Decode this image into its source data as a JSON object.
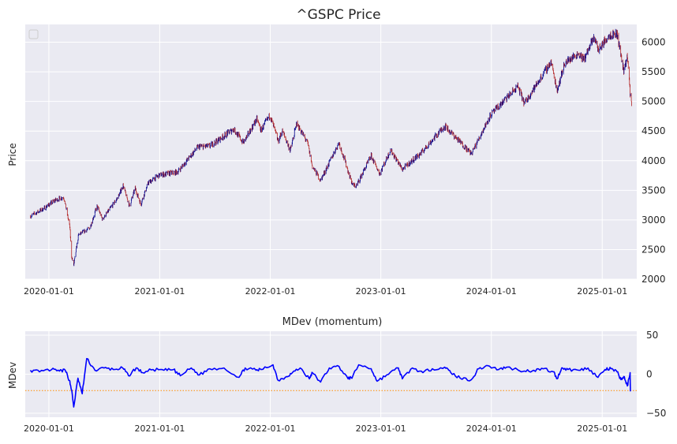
{
  "chart_data": [
    {
      "type": "candlestick",
      "title": "^GSPC Price",
      "ylabel": "Price",
      "xlabel": "",
      "ylim": [
        2000,
        6300
      ],
      "x_range": [
        "2019-10-15",
        "2025-04-25"
      ],
      "y_ticks": [
        2000,
        2500,
        3000,
        3500,
        4000,
        4500,
        5000,
        5500,
        6000
      ],
      "y_tick_labels": [
        "2000",
        "2500",
        "3000",
        "3500",
        "4000",
        "4500",
        "5000",
        "5500",
        "6000"
      ],
      "x_ticks": [
        "2020-01-01",
        "2021-01-01",
        "2022-01-01",
        "2023-01-01",
        "2024-01-01",
        "2025-01-01"
      ],
      "y_axis_side": "right",
      "grid": true,
      "legend": "top-left (empty)",
      "up_color": "#00008B",
      "down_color": "#B22222",
      "series": [
        {
          "x": [
            "2019-11-01",
            "2019-12-15",
            "2020-01-20",
            "2020-02-19",
            "2020-03-02",
            "2020-03-10",
            "2020-03-16",
            "2020-03-23",
            "2020-04-08",
            "2020-05-15",
            "2020-06-08",
            "2020-06-26",
            "2020-08-15",
            "2020-09-02",
            "2020-09-23",
            "2020-10-12",
            "2020-10-30",
            "2020-11-25",
            "2020-12-31",
            "2021-03-01",
            "2021-05-07",
            "2021-06-15",
            "2021-08-15",
            "2021-09-02",
            "2021-10-04",
            "2021-11-18",
            "2021-12-01",
            "2021-12-31",
            "2022-01-27",
            "2022-02-10",
            "2022-03-08",
            "2022-03-29",
            "2022-05-04",
            "2022-05-20",
            "2022-06-16",
            "2022-08-16",
            "2022-09-30",
            "2022-10-12",
            "2022-11-30",
            "2022-12-28",
            "2023-02-02",
            "2023-03-13",
            "2023-05-15",
            "2023-07-31",
            "2023-10-27",
            "2023-12-29",
            "2024-03-28",
            "2024-04-19",
            "2024-07-16",
            "2024-08-05",
            "2024-08-30",
            "2024-10-15",
            "2024-11-01",
            "2024-12-06",
            "2024-12-19",
            "2025-01-23",
            "2025-02-19",
            "2025-03-13",
            "2025-03-25",
            "2025-04-04",
            "2025-04-08"
          ],
          "close": [
            3066,
            3191,
            3329,
            3386,
            3091,
            2882,
            2386,
            2237,
            2749,
            2863,
            3232,
            3009,
            3372,
            3580,
            3237,
            3534,
            3270,
            3630,
            3756,
            3811,
            4232,
            4246,
            4468,
            4537,
            4300,
            4705,
            4513,
            4766,
            4327,
            4504,
            4170,
            4631,
            4300,
            3901,
            3666,
            4305,
            3585,
            3577,
            4080,
            3783,
            4179,
            3855,
            4136,
            4589,
            4117,
            4770,
            5254,
            4967,
            5667,
            5186,
            5648,
            5815,
            5705,
            6090,
            5867,
            6119,
            6144,
            5522,
            5776,
            5074,
            4982
          ]
        }
      ]
    },
    {
      "type": "line",
      "title": "MDev (momentum)",
      "ylabel": "MDev",
      "xlabel": "",
      "ylim": [
        -55,
        55
      ],
      "y_ticks": [
        -50,
        0,
        50
      ],
      "y_tick_labels": [
        "−50",
        "0",
        "50"
      ],
      "x_ticks": [
        "2020-01-01",
        "2021-01-01",
        "2022-01-01",
        "2023-01-01",
        "2024-01-01",
        "2025-01-01"
      ],
      "y_axis_side": "right",
      "grid": true,
      "line_color": "#0000FF",
      "threshold": {
        "value": -21,
        "color": "#FF8C00",
        "style": "dotted"
      },
      "series": [
        {
          "x": [
            "2019-11-01",
            "2019-12-01",
            "2020-01-10",
            "2020-02-05",
            "2020-02-24",
            "2020-03-09",
            "2020-03-16",
            "2020-03-23",
            "2020-04-06",
            "2020-04-20",
            "2020-05-05",
            "2020-06-01",
            "2020-07-01",
            "2020-08-01",
            "2020-09-01",
            "2020-09-20",
            "2020-10-15",
            "2020-11-05",
            "2020-12-10",
            "2021-01-15",
            "2021-02-15",
            "2021-03-10",
            "2021-04-15",
            "2021-05-12",
            "2021-06-15",
            "2021-08-01",
            "2021-09-20",
            "2021-10-10",
            "2021-11-15",
            "2021-12-01",
            "2022-01-10",
            "2022-01-27",
            "2022-02-24",
            "2022-03-15",
            "2022-04-10",
            "2022-05-10",
            "2022-05-20",
            "2022-06-16",
            "2022-07-15",
            "2022-08-16",
            "2022-09-15",
            "2022-09-30",
            "2022-10-20",
            "2022-11-30",
            "2022-12-20",
            "2023-01-20",
            "2023-02-28",
            "2023-03-13",
            "2023-04-15",
            "2023-05-20",
            "2023-06-20",
            "2023-07-31",
            "2023-08-20",
            "2023-09-20",
            "2023-10-27",
            "2023-11-20",
            "2023-12-20",
            "2024-01-25",
            "2024-02-20",
            "2024-04-19",
            "2024-05-20",
            "2024-06-20",
            "2024-07-24",
            "2024-08-05",
            "2024-08-20",
            "2024-09-10",
            "2024-10-15",
            "2024-11-15",
            "2024-12-18",
            "2025-01-10",
            "2025-01-30",
            "2025-02-19",
            "2025-03-04",
            "2025-03-13",
            "2025-03-25",
            "2025-04-03",
            "2025-04-04"
          ],
          "values": [
            5,
            3,
            6,
            4,
            5,
            -8,
            -20,
            -42,
            -5,
            -25,
            20,
            5,
            8,
            6,
            8,
            -2,
            8,
            2,
            6,
            5,
            6,
            -2,
            8,
            -1,
            7,
            8,
            -4,
            8,
            5,
            6,
            12,
            -8,
            -3,
            2,
            8,
            -6,
            2,
            -10,
            8,
            10,
            -6,
            -3,
            12,
            7,
            -9,
            -1,
            8,
            -6,
            8,
            2,
            7,
            9,
            2,
            -5,
            -7,
            7,
            11,
            6,
            9,
            4,
            5,
            7,
            3,
            -6,
            8,
            6,
            5,
            8,
            -4,
            6,
            7,
            3,
            -7,
            -3,
            -15,
            2,
            -22
          ]
        }
      ]
    }
  ]
}
